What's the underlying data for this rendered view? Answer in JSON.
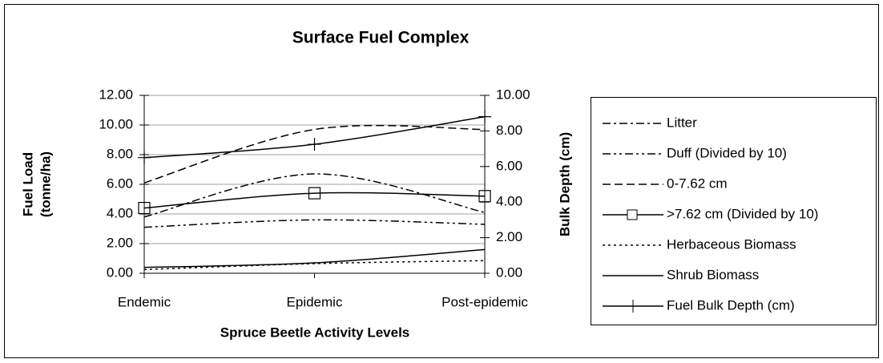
{
  "chart_data": {
    "type": "line",
    "title": "Surface Fuel Complex",
    "x_label": "Spruce Beetle Activity Levels",
    "y_label": [
      "Fuel Load",
      "(tonne/ha)"
    ],
    "y2_label": "Bulk Depth (cm)",
    "categories": [
      "Endemic",
      "Epidemic",
      "Post-epidemic"
    ],
    "ylim": [
      0,
      12
    ],
    "yticks": [
      {
        "value": 0,
        "label": "0.00"
      },
      {
        "value": 2,
        "label": "2.00"
      },
      {
        "value": 4,
        "label": "4.00"
      },
      {
        "value": 6,
        "label": "6.00"
      },
      {
        "value": 8,
        "label": "8.00"
      },
      {
        "value": 10,
        "label": "10.00"
      },
      {
        "value": 12,
        "label": "12.00"
      }
    ],
    "y2lim": [
      0,
      10
    ],
    "y2ticks": [
      {
        "value": 0,
        "label": "0.00"
      },
      {
        "value": 2,
        "label": "2.00"
      },
      {
        "value": 4,
        "label": "4.00"
      },
      {
        "value": 6,
        "label": "6.00"
      },
      {
        "value": 8,
        "label": "8.00"
      },
      {
        "value": 10,
        "label": "10.00"
      }
    ],
    "grid": true,
    "smooth": true,
    "legend": "right",
    "series": [
      {
        "name": "Litter",
        "color": "#000000",
        "style": "dash-dot",
        "marker": "none",
        "values": [
          3.8,
          6.7,
          4.1
        ]
      },
      {
        "name": "Duff (Divided by 10)",
        "color": "#000000",
        "style": "dash-dot-dot",
        "marker": "none",
        "values": [
          3.1,
          3.6,
          3.3
        ]
      },
      {
        "name": "0-7.62 cm",
        "color": "#000000",
        "style": "dash",
        "marker": "none",
        "values": [
          6.1,
          9.7,
          9.7
        ]
      },
      {
        "name": ">7.62 cm (Divided by 10)",
        "color": "#000000",
        "style": "solid",
        "marker": "square",
        "values": [
          4.4,
          5.4,
          5.2
        ]
      },
      {
        "name": "Herbaceous Biomass",
        "color": "#000000",
        "style": "dot",
        "marker": "none",
        "values": [
          0.25,
          0.65,
          0.85
        ]
      },
      {
        "name": "Shrub Biomass",
        "color": "#000000",
        "style": "solid",
        "marker": "none",
        "values": [
          0.4,
          0.7,
          1.6
        ]
      },
      {
        "name": "Fuel Bulk Depth (cm)",
        "color": "#000000",
        "style": "solid",
        "marker": "cross",
        "axis": "y2",
        "values": [
          6.5,
          7.25,
          8.8
        ]
      }
    ]
  }
}
